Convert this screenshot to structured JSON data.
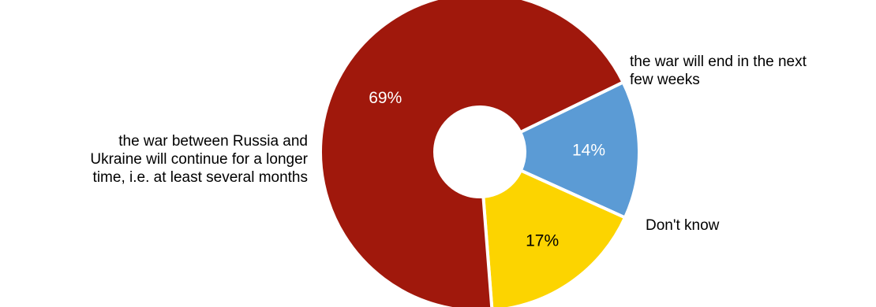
{
  "chart_data": {
    "type": "pie",
    "donut": true,
    "title": "",
    "slices": [
      {
        "label": "the war will end in the next few weeks",
        "label_lines": [
          "the war will end in the next",
          "few weeks"
        ],
        "value": 14,
        "display": "14%",
        "color": "#5b9bd5",
        "value_color": "#ffffff"
      },
      {
        "label": "Don't know",
        "label_lines": [
          "Don't know"
        ],
        "value": 17,
        "display": "17%",
        "color": "#fcd400",
        "value_color": "#000000"
      },
      {
        "label": "the war between Russia and Ukraine will continue for a longer time, i.e. at least several months",
        "label_lines": [
          "the war between Russia and",
          "Ukraine will continue for a longer",
          "time, i.e. at least several months"
        ],
        "value": 69,
        "display": "69%",
        "color": "#a0180c",
        "value_color": "#ffffff"
      }
    ],
    "legend": "none"
  }
}
